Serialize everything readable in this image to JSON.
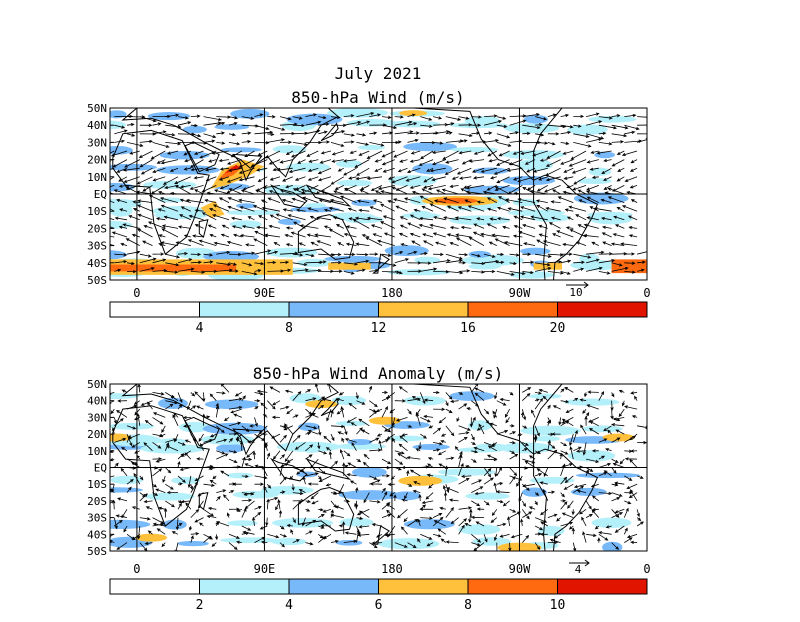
{
  "figure": {
    "title": "July 2021"
  },
  "panels": [
    {
      "title": "850-hPa Wind (m/s)",
      "lat_labels": [
        "50N",
        "40N",
        "30N",
        "20N",
        "10N",
        "EQ",
        "10S",
        "20S",
        "30S",
        "40S",
        "50S"
      ],
      "lon_labels": [
        "0",
        "90E",
        "180",
        "90W",
        "0"
      ],
      "reference_vector_label": "10",
      "colorbar": {
        "tick_labels": [
          "4",
          "8",
          "12",
          "16",
          "20"
        ],
        "colors": [
          "#ffffff",
          "#b4f0fa",
          "#78b9fa",
          "#ffc03c",
          "#ff6a10",
          "#e11400"
        ]
      }
    },
    {
      "title": "850-hPa Wind Anomaly (m/s)",
      "lat_labels": [
        "50N",
        "40N",
        "30N",
        "20N",
        "10N",
        "EQ",
        "10S",
        "20S",
        "30S",
        "40S",
        "50S"
      ],
      "lon_labels": [
        "0",
        "90E",
        "180",
        "90W",
        "0"
      ],
      "reference_vector_label": "4",
      "colorbar": {
        "tick_labels": [
          "2",
          "4",
          "6",
          "8",
          "10"
        ],
        "colors": [
          "#ffffff",
          "#b4f0fa",
          "#78b9fa",
          "#ffc03c",
          "#ff6a10",
          "#e11400"
        ]
      }
    }
  ]
}
